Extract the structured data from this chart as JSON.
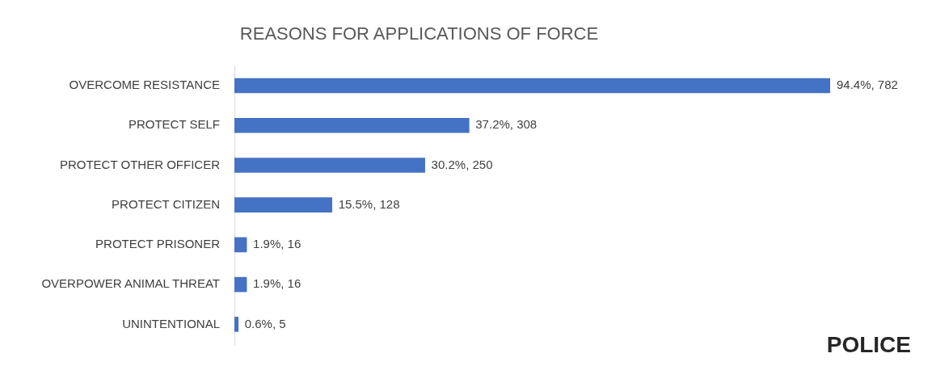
{
  "chart_data": {
    "type": "bar",
    "orientation": "horizontal",
    "title": "REASONS FOR APPLICATIONS OF FORCE",
    "categories": [
      "OVERCOME RESISTANCE",
      "PROTECT SELF",
      "PROTECT OTHER OFFICER",
      "PROTECT CITIZEN",
      "PROTECT PRISONER",
      "OVERPOWER ANIMAL THREAT",
      "UNINTENTIONAL"
    ],
    "values": [
      782,
      308,
      250,
      128,
      16,
      16,
      5
    ],
    "value_labels": [
      "94.4%, 782",
      "37.2%, 308",
      "30.2%, 250",
      "15.5%, 128",
      "1.9%, 16",
      "1.9%, 16",
      "0.6%, 5"
    ],
    "color": "#4472c4",
    "legend": false,
    "annotations": [
      "POLICE"
    ]
  }
}
